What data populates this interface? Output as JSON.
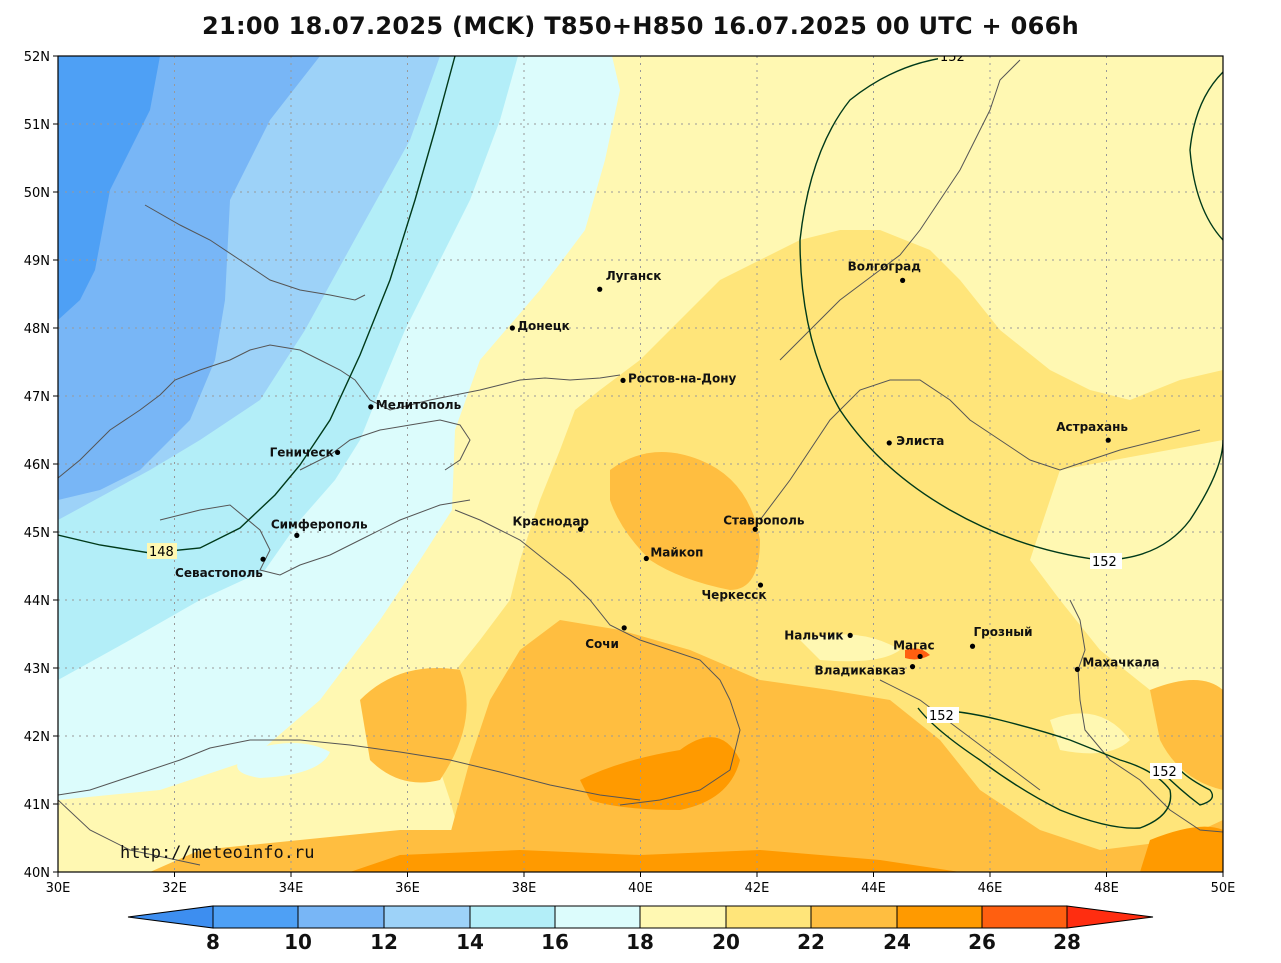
{
  "title": "21:00 18.07.2025 (MCK) T850+H850 16.07.2025 00 UTC + 066h",
  "url": "http://meteoinfo.ru",
  "axes": {
    "lon_labels": [
      "30E",
      "32E",
      "34E",
      "36E",
      "38E",
      "40E",
      "42E",
      "44E",
      "46E",
      "48E",
      "50E"
    ],
    "lat_labels": [
      "52N",
      "51N",
      "50N",
      "49N",
      "48N",
      "47N",
      "46N",
      "45N",
      "44N",
      "43N",
      "42N",
      "41N",
      "40N"
    ]
  },
  "cities": [
    {
      "name": "Луганск",
      "lon": 39.3,
      "lat": 48.57
    },
    {
      "name": "Донецк",
      "lon": 37.8,
      "lat": 48.0
    },
    {
      "name": "Волгоград",
      "lon": 44.5,
      "lat": 48.7
    },
    {
      "name": "Ростов-на-Дону",
      "lon": 39.7,
      "lat": 47.23
    },
    {
      "name": "Мелитополь",
      "lon": 35.37,
      "lat": 46.84
    },
    {
      "name": "Геническ",
      "lon": 34.8,
      "lat": 46.17
    },
    {
      "name": "Элиста",
      "lon": 44.27,
      "lat": 46.31
    },
    {
      "name": "Астрахань",
      "lon": 48.03,
      "lat": 46.35
    },
    {
      "name": "Симферополь",
      "lon": 34.1,
      "lat": 44.95
    },
    {
      "name": "Севастополь",
      "lon": 33.52,
      "lat": 44.6
    },
    {
      "name": "Краснодар",
      "lon": 38.97,
      "lat": 45.04
    },
    {
      "name": "Ставрополь",
      "lon": 41.97,
      "lat": 45.04
    },
    {
      "name": "Майкоп",
      "lon": 40.1,
      "lat": 44.61
    },
    {
      "name": "Черкесск",
      "lon": 42.06,
      "lat": 44.22
    },
    {
      "name": "Сочи",
      "lon": 39.72,
      "lat": 43.59
    },
    {
      "name": "Нальчик",
      "lon": 43.6,
      "lat": 43.48
    },
    {
      "name": "Магас",
      "lon": 44.8,
      "lat": 43.17
    },
    {
      "name": "Грозный",
      "lon": 45.7,
      "lat": 43.32
    },
    {
      "name": "Владикавказ",
      "lon": 44.67,
      "lat": 43.02
    },
    {
      "name": "Махачкала",
      "lon": 47.5,
      "lat": 42.98
    }
  ],
  "contour_labels": [
    "148",
    "152",
    "152",
    "152",
    "152"
  ],
  "colorbar": {
    "ticks": [
      "8",
      "10",
      "12",
      "14",
      "16",
      "18",
      "20",
      "22",
      "24",
      "26",
      "28"
    ],
    "colors": [
      "#3d8ef0",
      "#4ea0f5",
      "#78b6f6",
      "#9dd2f8",
      "#b3eef8",
      "#dcfcfc",
      "#fff8b2",
      "#ffe57a",
      "#ffbe40",
      "#ff9a00",
      "#ff5f10",
      "#ff2d10"
    ]
  }
}
